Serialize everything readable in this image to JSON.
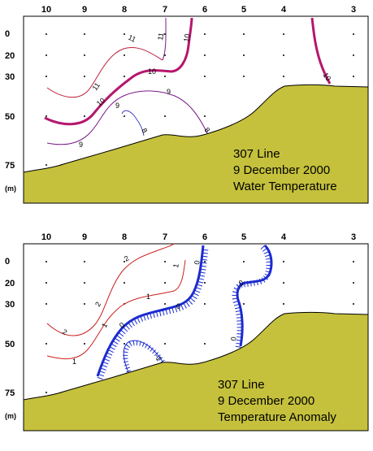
{
  "panels": [
    {
      "id": "top",
      "station_labels": [
        "10",
        "9",
        "8",
        "7",
        "6",
        "5",
        "4",
        "3"
      ],
      "depth_labels": [
        "0",
        "20",
        "30",
        "50",
        "75"
      ],
      "depth_unit": "(m)",
      "caption": [
        "307 Line",
        "9 December 2000",
        "Water Temperature"
      ],
      "contour_labels": [
        "11",
        "11",
        "10",
        "10",
        "10",
        "10",
        "9",
        "9",
        "9",
        "8",
        "8",
        "10"
      ]
    },
    {
      "id": "bottom",
      "station_labels": [
        "10",
        "9",
        "8",
        "7",
        "6",
        "5",
        "4",
        "3"
      ],
      "depth_labels": [
        "0",
        "20",
        "30",
        "50",
        "75"
      ],
      "depth_unit": "(m)",
      "caption": [
        "307 Line",
        "9 December 2000",
        "Temperature Anomaly"
      ],
      "contour_labels": [
        "2",
        "1",
        "2",
        "1",
        "2",
        "1",
        "0",
        "0",
        "0",
        "-1",
        "0",
        "0"
      ]
    }
  ],
  "colors": {
    "seabed": "#c5c13c",
    "temp_contour": "#b5176e",
    "temp_contour_thin": "#7a1a8a",
    "anom_positive": "#cc2020",
    "anom_zero": "#1a2ad0"
  }
}
